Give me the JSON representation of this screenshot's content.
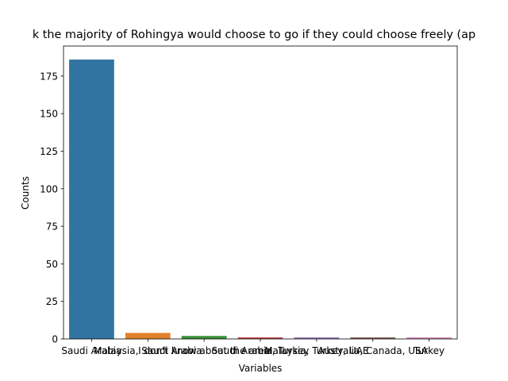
{
  "chart_data": {
    "type": "bar",
    "title": "k the majority of Rohingya would choose to go if they could choose freely (ap",
    "xlabel": "Variables",
    "ylabel": "Counts",
    "categories": [
      "Saudi Arabia",
      "Malaysia, Saudi Arabia",
      "I don't know about the area",
      "Saudi Arabia, Turkey",
      "Malaysia, Turkey, UAE",
      "Australia, Canada, USA",
      "Turkey"
    ],
    "values": [
      186,
      4,
      2,
      1,
      1,
      1,
      1
    ],
    "colors": [
      "#3274a1",
      "#e1812c",
      "#3a923a",
      "#c03d3e",
      "#9372b2",
      "#845b53",
      "#d684bd"
    ],
    "ylim": [
      0,
      195
    ],
    "yticks": [
      0,
      25,
      50,
      75,
      100,
      125,
      150,
      175
    ],
    "grid": false,
    "legend": "none"
  }
}
